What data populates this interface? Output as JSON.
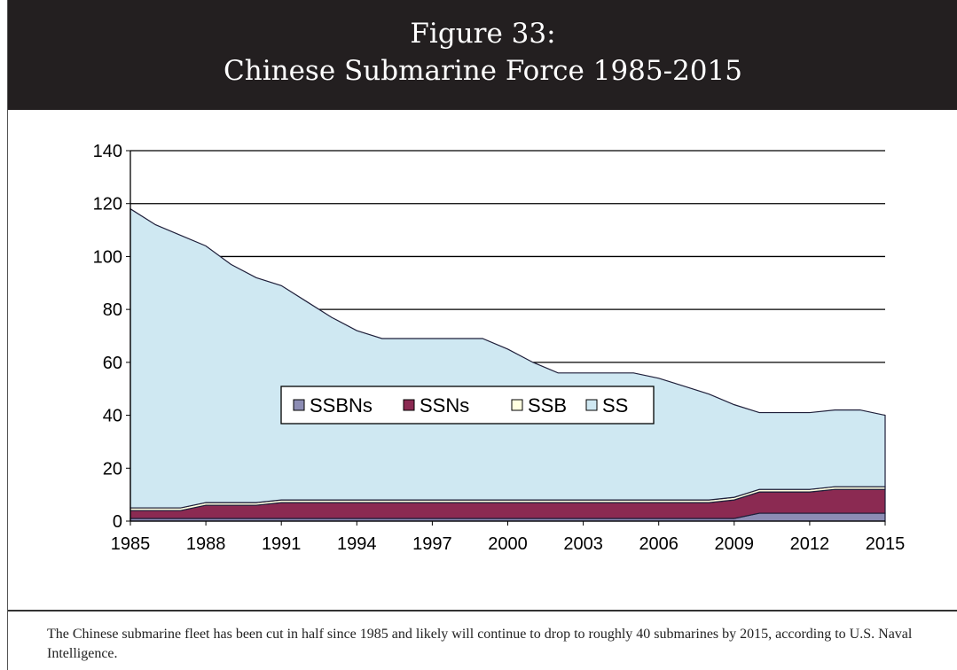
{
  "figure": {
    "title": "Figure 33:",
    "subtitle": "Chinese Submarine Force 1985-2015"
  },
  "caption": "The Chinese submarine fleet has been cut in half since 1985 and likely will continue to drop to roughly 40 submarines by 2015, according to U.S. Naval Intelligence.",
  "colors": {
    "SSBNs": "#8c8cb4",
    "SSNs": "#8b2a52",
    "SSB": "#ffffe0",
    "SS": "#cfe8f2",
    "header_bg": "#231f20",
    "outline": "#1f1f3a"
  },
  "chart_data": {
    "type": "area",
    "stacked": true,
    "title": "",
    "xlabel": "",
    "ylabel": "",
    "ylim": [
      0,
      140
    ],
    "yticks": [
      "0",
      "20",
      "40",
      "60",
      "80",
      "100",
      "120",
      "140"
    ],
    "xtick_labels": [
      "1985",
      "1988",
      "1991",
      "1994",
      "1997",
      "2000",
      "2003",
      "2006",
      "2009",
      "2012",
      "2015"
    ],
    "grid": "horizontal",
    "legend_position": "center",
    "x": [
      1985,
      1986,
      1987,
      1988,
      1989,
      1990,
      1991,
      1992,
      1993,
      1994,
      1995,
      1996,
      1997,
      1998,
      1999,
      2000,
      2001,
      2002,
      2003,
      2004,
      2005,
      2006,
      2007,
      2008,
      2009,
      2010,
      2011,
      2012,
      2013,
      2014,
      2015
    ],
    "series": [
      {
        "name": "SSBNs",
        "values": [
          1,
          1,
          1,
          1,
          1,
          1,
          1,
          1,
          1,
          1,
          1,
          1,
          1,
          1,
          1,
          1,
          1,
          1,
          1,
          1,
          1,
          1,
          1,
          1,
          1,
          3,
          3,
          3,
          3,
          3,
          3
        ]
      },
      {
        "name": "SSNs",
        "values": [
          3,
          3,
          3,
          5,
          5,
          5,
          6,
          6,
          6,
          6,
          6,
          6,
          6,
          6,
          6,
          6,
          6,
          6,
          6,
          6,
          6,
          6,
          6,
          6,
          7,
          8,
          8,
          8,
          9,
          9,
          9
        ]
      },
      {
        "name": "SSB",
        "values": [
          1,
          1,
          1,
          1,
          1,
          1,
          1,
          1,
          1,
          1,
          1,
          1,
          1,
          1,
          1,
          1,
          1,
          1,
          1,
          1,
          1,
          1,
          1,
          1,
          1,
          1,
          1,
          1,
          1,
          1,
          1
        ]
      },
      {
        "name": "SS",
        "values": [
          113,
          107,
          103,
          97,
          90,
          85,
          81,
          75,
          69,
          64,
          61,
          61,
          61,
          61,
          61,
          57,
          52,
          48,
          48,
          48,
          48,
          46,
          43,
          40,
          35,
          29,
          29,
          29,
          29,
          29,
          27
        ]
      }
    ]
  }
}
